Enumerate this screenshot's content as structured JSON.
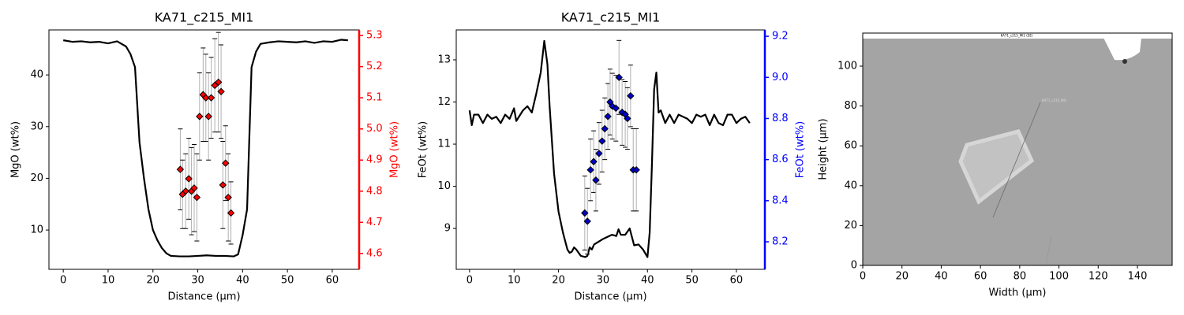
{
  "chart_data": [
    {
      "type": "line",
      "title": "KA71_c215_MI1",
      "x_label": "Distance (µm)",
      "y_label": "MgO (wt%)",
      "y2_label": "MgO (wt%)",
      "y2_color": "#ff0000",
      "xlim": [
        -3.2,
        66.0
      ],
      "ylim": [
        2.4,
        48.7
      ],
      "y2lim": [
        4.549,
        5.318
      ],
      "xticks": [
        0,
        10,
        20,
        30,
        40,
        50,
        60
      ],
      "yticks": [
        10,
        20,
        30,
        40
      ],
      "y2ticks": [
        4.6,
        4.7,
        4.8,
        4.9,
        {
          "value": 5,
          "label": "5.0"
        },
        5.1,
        5.2,
        5.3
      ],
      "series": [
        {
          "type": "line",
          "color": "#000000",
          "x": [
            0,
            2,
            4,
            6,
            8,
            10,
            12,
            14,
            15,
            16,
            17,
            18,
            19,
            20,
            21,
            22,
            23,
            24,
            26,
            28,
            30,
            32,
            34,
            36,
            38,
            39,
            40,
            41,
            42,
            43,
            44,
            46,
            48,
            50,
            52,
            54,
            56,
            58,
            60,
            62,
            63.5
          ],
          "values": [
            46.7,
            46.4,
            46.5,
            46.3,
            46.4,
            46.1,
            46.5,
            45.5,
            44,
            41.5,
            27,
            20,
            14,
            10,
            8,
            6.5,
            5.5,
            5.0,
            4.9,
            4.9,
            5.0,
            5.1,
            5.0,
            5.0,
            4.9,
            5.3,
            9,
            14,
            41.5,
            44.5,
            46,
            46.3,
            46.5,
            46.4,
            46.3,
            46.5,
            46.2,
            46.5,
            46.4,
            46.8,
            46.7
          ]
        },
        {
          "type": "scatter",
          "axis": "y2",
          "color": "#ff0000",
          "x": [
            26.1,
            26.6,
            27.3,
            28,
            28.6,
            29.2,
            29.8,
            30.4,
            31.2,
            31.8,
            32.4,
            33,
            33.8,
            34.6,
            35.2,
            35.6,
            36.2,
            36.8,
            37.4
          ],
          "values": [
            4.87,
            4.79,
            4.8,
            4.84,
            4.8,
            4.81,
            4.78,
            5.04,
            5.11,
            5.1,
            5.04,
            5.1,
            5.14,
            5.15,
            5.12,
            4.82,
            4.89,
            4.78,
            4.73
          ],
          "errors": [
            0.13,
            0.11,
            0.12,
            0.13,
            0.14,
            0.14,
            0.14,
            0.14,
            0.15,
            0.14,
            0.14,
            0.13,
            0.15,
            0.16,
            0.15,
            0.14,
            0.12,
            0.14,
            0.1
          ]
        }
      ]
    },
    {
      "type": "line",
      "title": "KA71_c215_MI1",
      "x_label": "Distance (µm)",
      "y_label": "FeOt (wt%)",
      "y2_label": "FeOt (wt%)",
      "y2_color": "#0000ff",
      "xlim": [
        -3.0,
        66.4
      ],
      "ylim": [
        8.03,
        13.71
      ],
      "y2lim": [
        8.066,
        9.231
      ],
      "xticks": [
        0,
        10,
        20,
        30,
        40,
        50,
        60
      ],
      "yticks": [
        9,
        10,
        11,
        12,
        13
      ],
      "y2ticks": [
        8.2,
        8.4,
        8.6,
        8.8,
        {
          "value": 9,
          "label": "9.0"
        },
        9.2
      ],
      "series": [
        {
          "type": "line",
          "color": "#000000",
          "x": [
            0,
            0.5,
            1,
            2,
            3,
            4,
            5,
            6,
            7,
            8,
            9,
            10,
            10.5,
            12,
            13,
            14,
            15,
            16,
            16.8,
            17.5,
            18,
            19,
            20,
            21,
            22,
            22.5,
            23,
            23.5,
            24,
            25,
            26,
            26.5,
            27,
            27.5,
            28,
            30,
            32,
            33,
            33.5,
            34,
            35,
            36,
            37,
            38,
            39,
            40,
            40.5,
            41,
            41.5,
            42,
            42.5,
            43,
            44,
            45,
            46,
            47,
            48,
            49,
            50,
            51,
            52,
            53,
            54,
            55,
            56,
            57,
            58,
            59,
            60,
            61,
            62,
            63
          ],
          "values": [
            11.8,
            11.45,
            11.7,
            11.7,
            11.5,
            11.7,
            11.6,
            11.65,
            11.5,
            11.7,
            11.6,
            11.85,
            11.55,
            11.8,
            11.9,
            11.75,
            12.2,
            12.7,
            13.45,
            12.9,
            11.9,
            10.3,
            9.4,
            8.9,
            8.5,
            8.42,
            8.45,
            8.55,
            8.5,
            8.35,
            8.32,
            8.35,
            8.55,
            8.5,
            8.62,
            8.75,
            8.85,
            8.82,
            8.98,
            8.85,
            8.85,
            9.0,
            8.6,
            8.62,
            8.5,
            8.32,
            8.9,
            10.5,
            12.3,
            12.7,
            11.75,
            11.8,
            11.5,
            11.7,
            11.5,
            11.7,
            11.65,
            11.6,
            11.5,
            11.7,
            11.65,
            11.7,
            11.45,
            11.7,
            11.5,
            11.45,
            11.7,
            11.7,
            11.5,
            11.6,
            11.65,
            11.5
          ]
        },
        {
          "type": "scatter",
          "axis": "y2",
          "color": "#0000cc",
          "x": [
            25.9,
            26.5,
            27.2,
            27.9,
            28.4,
            29.1,
            29.8,
            30.4,
            31.1,
            31.6,
            32.1,
            32.9,
            33.6,
            34.3,
            35.0,
            35.5,
            36.2,
            36.8,
            37.5
          ],
          "values": [
            8.34,
            8.3,
            8.55,
            8.59,
            8.5,
            8.63,
            8.69,
            8.75,
            8.81,
            8.88,
            8.86,
            8.85,
            9.0,
            8.83,
            8.82,
            8.8,
            8.91,
            8.55,
            8.55
          ],
          "errors": [
            0.18,
            0.16,
            0.15,
            0.15,
            0.15,
            0.15,
            0.15,
            0.15,
            0.16,
            0.16,
            0.16,
            0.16,
            0.18,
            0.16,
            0.16,
            0.15,
            0.15,
            0.2,
            0.2
          ]
        }
      ]
    },
    {
      "type": "image",
      "x_label": "Width (µm)",
      "y_label": "Height (µm)",
      "image_caption": "KA71_c215_MI1 (SE)",
      "image_annotation": "KA71_c215_MI1",
      "xlim": [
        0,
        157.7
      ],
      "ylim": [
        0,
        116.6
      ],
      "xticks": [
        0,
        20,
        40,
        60,
        80,
        100,
        120,
        140
      ],
      "yticks": [
        0,
        20,
        40,
        60,
        80,
        100
      ]
    }
  ]
}
